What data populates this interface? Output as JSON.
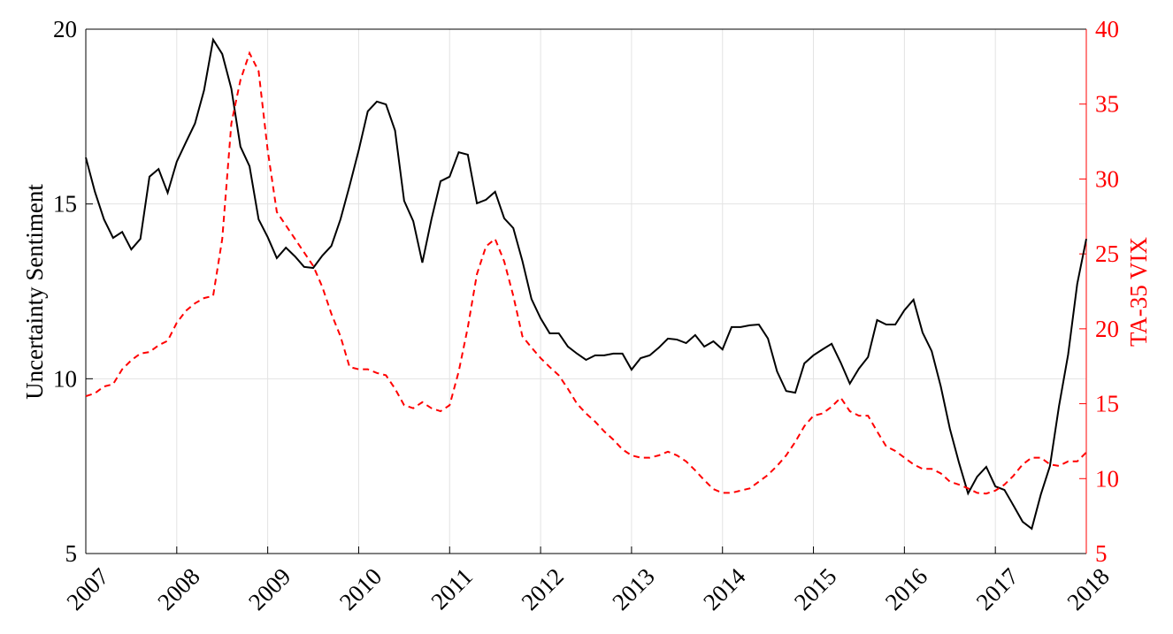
{
  "chart_data": {
    "type": "line",
    "ylabel": "Uncertainty Sentiment",
    "y2label": "TA-35 VIX",
    "xlim": [
      2007,
      2018
    ],
    "xticks": [
      2007,
      2008,
      2009,
      2010,
      2011,
      2012,
      2013,
      2014,
      2015,
      2016,
      2017,
      2018
    ],
    "ylim": [
      5,
      20
    ],
    "yticks": [
      5,
      10,
      15,
      20
    ],
    "y2lim": [
      5,
      40
    ],
    "y2ticks": [
      5,
      10,
      15,
      20,
      25,
      30,
      35,
      40
    ],
    "y2color": "#ff0000",
    "grid": true,
    "x": [
      2007,
      2007.1,
      2007.2,
      2007.3,
      2007.4,
      2007.5,
      2007.6,
      2007.7,
      2007.8,
      2007.9,
      2008,
      2008.1,
      2008.2,
      2008.3,
      2008.4,
      2008.5,
      2008.6,
      2008.7,
      2008.8,
      2008.9,
      2009,
      2009.1,
      2009.2,
      2009.3,
      2009.4,
      2009.5,
      2009.6,
      2009.7,
      2009.8,
      2009.9,
      2010,
      2010.1,
      2010.2,
      2010.3,
      2010.4,
      2010.5,
      2010.6,
      2010.7,
      2010.8,
      2010.9,
      2011,
      2011.1,
      2011.2,
      2011.3,
      2011.4,
      2011.5,
      2011.6,
      2011.7,
      2011.8,
      2011.9,
      2012,
      2012.1,
      2012.2,
      2012.3,
      2012.4,
      2012.5,
      2012.6,
      2012.7,
      2012.8,
      2012.9,
      2013,
      2013.1,
      2013.2,
      2013.3,
      2013.4,
      2013.5,
      2013.6,
      2013.7,
      2013.8,
      2013.9,
      2014,
      2014.1,
      2014.2,
      2014.3,
      2014.4,
      2014.5,
      2014.6,
      2014.7,
      2014.8,
      2014.9,
      2015,
      2015.1,
      2015.2,
      2015.3,
      2015.4,
      2015.5,
      2015.6,
      2015.7,
      2015.8,
      2015.9,
      2016,
      2016.1,
      2016.2,
      2016.3,
      2016.4,
      2016.5,
      2016.6,
      2016.7,
      2016.8,
      2016.9,
      2017,
      2017.1,
      2017.2,
      2017.3,
      2017.4,
      2017.5,
      2017.6,
      2017.7,
      2017.8,
      2017.9,
      2018
    ],
    "series": [
      {
        "color": "#000000",
        "dash": false,
        "values": [
          16.33,
          15.35,
          14.56,
          14.03,
          14.2,
          13.7,
          14.0,
          15.78,
          16.0,
          15.32,
          16.21,
          16.76,
          17.3,
          18.25,
          19.7,
          19.29,
          18.3,
          16.64,
          16.08,
          14.56,
          14.05,
          13.45,
          13.75,
          13.5,
          13.2,
          13.17,
          13.52,
          13.8,
          14.56,
          15.52,
          16.53,
          17.65,
          17.93,
          17.85,
          17.1,
          15.09,
          14.51,
          13.32,
          14.56,
          15.65,
          15.78,
          16.48,
          16.41,
          15.02,
          15.12,
          15.35,
          14.59,
          14.31,
          13.37,
          12.28,
          11.73,
          11.3,
          11.3,
          10.92,
          10.72,
          10.54,
          10.67,
          10.67,
          10.72,
          10.72,
          10.26,
          10.59,
          10.67,
          10.89,
          11.15,
          11.12,
          11.02,
          11.25,
          10.92,
          11.07,
          10.84,
          11.48,
          11.48,
          11.53,
          11.55,
          11.15,
          10.21,
          9.65,
          9.6,
          10.44,
          10.67,
          10.84,
          11.0,
          10.46,
          9.86,
          10.29,
          10.62,
          11.68,
          11.55,
          11.55,
          11.96,
          12.26,
          11.32,
          10.79,
          9.78,
          8.57,
          7.6,
          6.72,
          7.2,
          7.48,
          6.92,
          6.82,
          6.37,
          5.91,
          5.71,
          6.69,
          7.5,
          9.22,
          10.69,
          12.71,
          14.0
        ]
      },
      {
        "color": "#ff0000",
        "dash": true,
        "axis": "y2",
        "values": [
          15.5,
          15.7,
          16.15,
          16.3,
          17.3,
          17.9,
          18.35,
          18.45,
          18.9,
          19.2,
          20.4,
          21.2,
          21.7,
          22.05,
          22.2,
          26.0,
          33.7,
          36.6,
          38.4,
          37.2,
          31.9,
          27.8,
          26.9,
          26.0,
          25.1,
          24.2,
          22.8,
          21.0,
          19.5,
          17.45,
          17.3,
          17.3,
          17.05,
          16.9,
          16.0,
          14.9,
          14.7,
          15.1,
          14.7,
          14.5,
          14.9,
          17.15,
          20.1,
          23.65,
          25.5,
          26.0,
          24.5,
          22.2,
          19.5,
          18.75,
          18.05,
          17.45,
          16.9,
          16.0,
          15.0,
          14.35,
          13.8,
          13.15,
          12.6,
          11.95,
          11.55,
          11.4,
          11.4,
          11.55,
          11.8,
          11.55,
          11.15,
          10.55,
          9.9,
          9.3,
          9.05,
          9.05,
          9.2,
          9.35,
          9.8,
          10.25,
          10.85,
          11.55,
          12.45,
          13.5,
          14.2,
          14.35,
          14.8,
          15.4,
          14.5,
          14.2,
          14.2,
          13.15,
          12.15,
          11.85,
          11.4,
          10.95,
          10.65,
          10.65,
          10.35,
          9.8,
          9.6,
          9.35,
          9.05,
          9.0,
          9.2,
          9.6,
          10.2,
          10.95,
          11.4,
          11.4,
          10.95,
          10.85,
          11.15,
          11.15,
          11.75
        ]
      }
    ]
  }
}
